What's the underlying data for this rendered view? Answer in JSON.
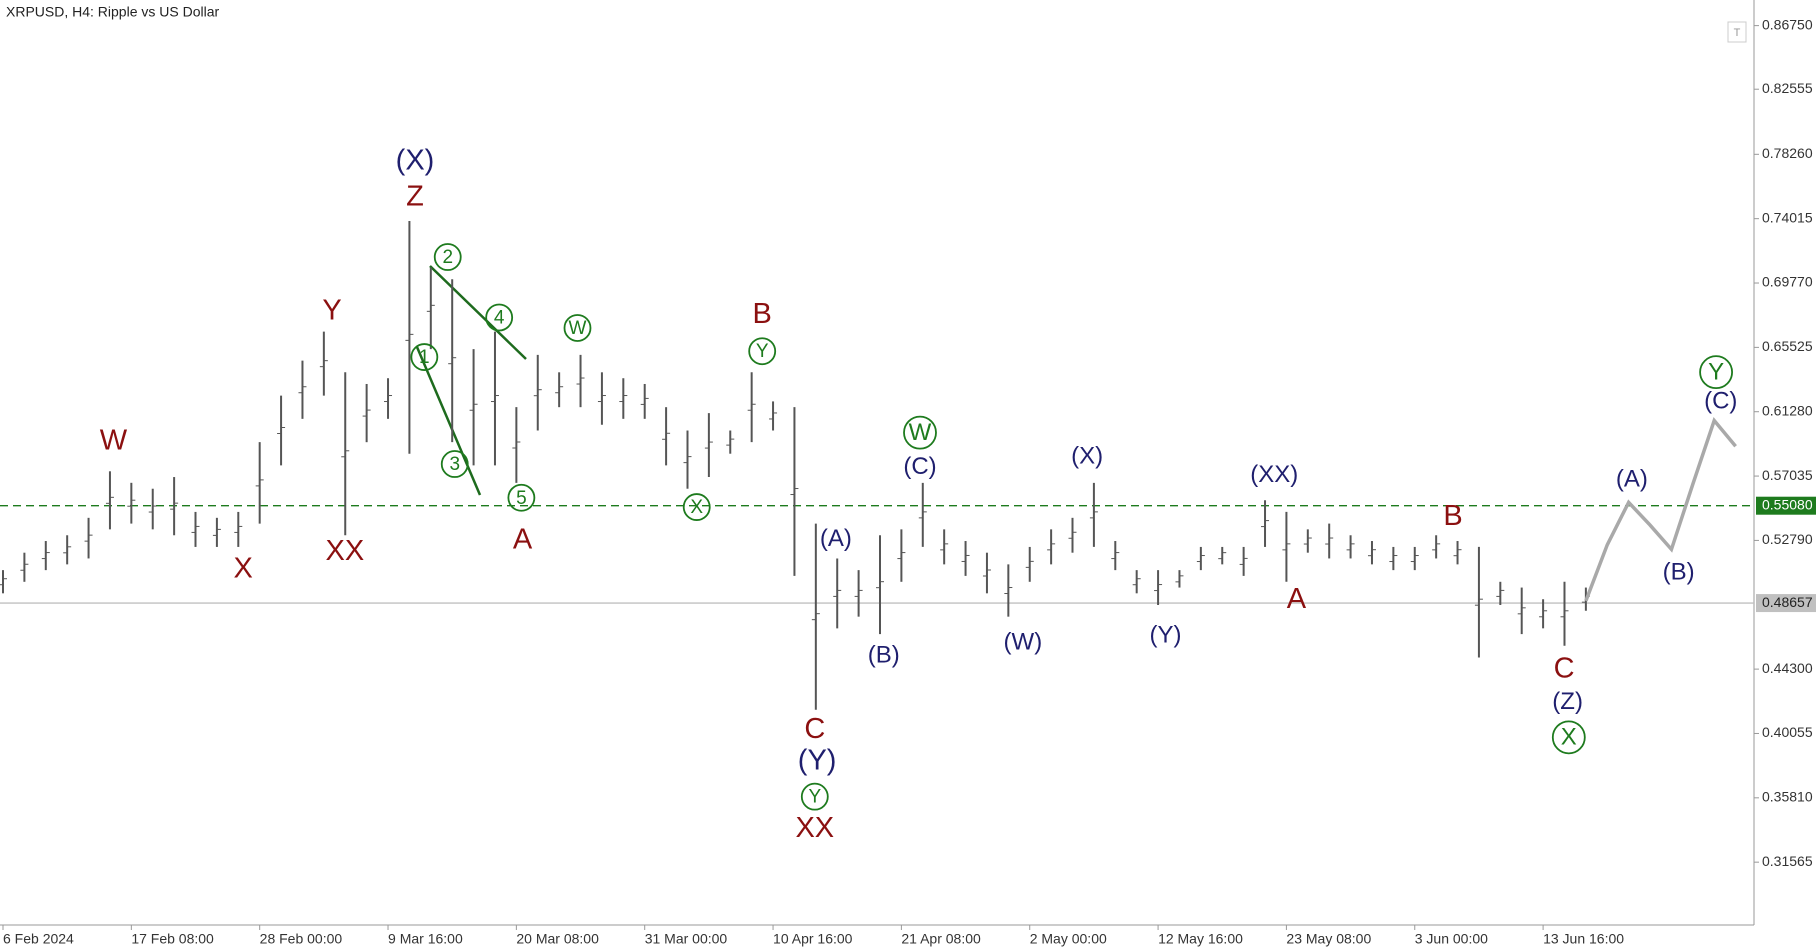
{
  "chart_data": {
    "type": "ohlc",
    "title": "XRPUSD, H4:  Ripple vs US Dollar",
    "categories": [
      "6 Feb 2024",
      null,
      null,
      null,
      null,
      null,
      "17 Feb 08:00",
      null,
      null,
      null,
      null,
      null,
      "28 Feb 00:00",
      null,
      null,
      null,
      null,
      null,
      "9 Mar 16:00",
      null,
      null,
      null,
      null,
      null,
      "20 Mar 08:00",
      null,
      null,
      null,
      null,
      null,
      "31 Mar 00:00",
      null,
      null,
      null,
      null,
      null,
      "10 Apr 16:00",
      null,
      null,
      null,
      null,
      null,
      "21 Apr 08:00",
      null,
      null,
      null,
      null,
      null,
      "2 May 00:00",
      null,
      null,
      null,
      null,
      null,
      "12 May 16:00",
      null,
      null,
      null,
      null,
      null,
      "23 May 08:00",
      null,
      null,
      null,
      null,
      null,
      "3 Jun 00:00",
      null,
      null,
      null,
      null,
      null,
      "13 Jun 16:00",
      null,
      null,
      null,
      null,
      null,
      null,
      null,
      null,
      null
    ],
    "high": [
      0.5083,
      0.5198,
      0.5275,
      0.5313,
      0.5428,
      0.5735,
      0.5659,
      0.562,
      0.5697,
      0.5467,
      0.5428,
      0.5467,
      0.5927,
      0.6234,
      0.6465,
      0.6656,
      0.6388,
      0.6311,
      0.6349,
      0.7386,
      0.7079,
      0.7002,
      0.6541,
      0.6656,
      0.6158,
      0.6503,
      0.6388,
      0.6503,
      0.6388,
      0.6349,
      0.6311,
      0.6158,
      0.6004,
      0.6119,
      0.6004,
      0.6388,
      0.6196,
      0.6158,
      0.539,
      0.516,
      0.5083,
      0.5313,
      0.5352,
      0.5659,
      0.5352,
      0.5275,
      0.5198,
      0.5121,
      0.5236,
      0.5352,
      0.5428,
      0.5659,
      0.5275,
      0.5083,
      0.5083,
      0.5083,
      0.5236,
      0.5236,
      0.5236,
      0.5544,
      0.5467,
      0.5352,
      0.539,
      0.5313,
      0.5275,
      0.5236,
      0.5236,
      0.5313,
      0.5275,
      0.5236,
      0.5006,
      0.4968,
      0.4891,
      0.5006,
      0.4968,
      null,
      null,
      null,
      null,
      null,
      null,
      null
    ],
    "low": [
      0.493,
      0.5006,
      0.5083,
      0.5121,
      0.516,
      0.5352,
      0.539,
      0.5352,
      0.5313,
      0.5236,
      0.5236,
      0.5236,
      0.539,
      0.5774,
      0.6081,
      0.6234,
      0.5313,
      0.5927,
      0.6081,
      0.5851,
      0.6541,
      0.5927,
      0.5774,
      0.5774,
      0.5659,
      0.6004,
      0.6158,
      0.6158,
      0.6042,
      0.6081,
      0.6081,
      0.5774,
      0.562,
      0.5697,
      0.5851,
      0.5927,
      0.6004,
      0.5045,
      0.4162,
      0.4699,
      0.4776,
      0.4661,
      0.5006,
      0.5236,
      0.5121,
      0.5045,
      0.493,
      0.4776,
      0.5006,
      0.5121,
      0.5198,
      0.5236,
      0.5083,
      0.493,
      0.4853,
      0.4968,
      0.5083,
      0.5121,
      0.5045,
      0.5236,
      0.5006,
      0.5198,
      0.516,
      0.516,
      0.5121,
      0.5083,
      0.5083,
      0.516,
      0.5121,
      0.4507,
      0.4853,
      0.4661,
      0.4699,
      0.4584,
      0.4815,
      null,
      null,
      null,
      null,
      null,
      null,
      null
    ],
    "color": "#555555",
    "forecast": {
      "color": "#a9a9a9",
      "values": [
        null,
        null,
        null,
        null,
        null,
        null,
        null,
        null,
        null,
        null,
        null,
        null,
        null,
        null,
        null,
        null,
        null,
        null,
        null,
        null,
        null,
        null,
        null,
        null,
        null,
        null,
        null,
        null,
        null,
        null,
        null,
        null,
        null,
        null,
        null,
        null,
        null,
        null,
        null,
        null,
        null,
        null,
        null,
        null,
        null,
        null,
        null,
        null,
        null,
        null,
        null,
        null,
        null,
        null,
        null,
        null,
        null,
        null,
        null,
        null,
        null,
        null,
        null,
        null,
        null,
        null,
        null,
        null,
        null,
        null,
        null,
        null,
        null,
        null,
        0.488,
        0.525,
        0.553,
        0.538,
        0.522,
        0.565,
        0.607,
        0.59
      ]
    },
    "ylim": [
      0.2742,
      0.8844
    ],
    "yticks": [
      {
        "value": 0.8675,
        "label": "0.86750"
      },
      0.82555,
      {
        "value": 0.7826,
        "label": "0.78260"
      },
      0.74015,
      {
        "value": 0.6977,
        "label": "0.69770"
      },
      0.65525,
      {
        "value": 0.6128,
        "label": "0.61280"
      },
      0.57035,
      {
        "value": 0.5279,
        "label": "0.52790"
      },
      {
        "value": 0.443,
        "label": "0.44300"
      },
      0.40055,
      {
        "value": 0.3581,
        "label": "0.35810"
      },
      0.31565
    ],
    "levels": [
      {
        "value": 0.5508,
        "label": "0.55080",
        "color": "#1e7b1e",
        "dashed": true
      },
      {
        "value": 0.48657,
        "label": "0.48657",
        "color": "#c0c0c0",
        "dashed": false
      }
    ],
    "annotations": [
      {
        "text": "W",
        "color": "#8b1010"
      },
      {
        "text": "X",
        "color": "#8b1010"
      },
      {
        "text": "Y",
        "color": "#8b1010"
      },
      {
        "text": "XX",
        "color": "#8b1010"
      },
      {
        "text": "(X)",
        "color": "#1f1f6e"
      },
      {
        "text": "Z",
        "color": "#8b1010"
      },
      {
        "text": "2",
        "color": "#1e7b1e",
        "circled": true
      },
      {
        "text": "1",
        "color": "#1e7b1e",
        "circled": true
      },
      {
        "text": "3",
        "color": "#1e7b1e",
        "circled": true
      },
      {
        "text": "4",
        "color": "#1e7b1e",
        "circled": true
      },
      {
        "text": "5",
        "color": "#1e7b1e",
        "circled": true
      },
      {
        "text": "A",
        "color": "#8b1010"
      },
      {
        "text": "W",
        "color": "#1e7b1e",
        "circled": true
      },
      {
        "text": "B",
        "color": "#8b1010"
      },
      {
        "text": "Y",
        "color": "#1e7b1e",
        "circled": true
      },
      {
        "text": "X",
        "color": "#1e7b1e",
        "circled": true
      },
      {
        "text": "(A)",
        "color": "#1f1f6e"
      },
      {
        "text": "(B)",
        "color": "#1f1f6e"
      },
      {
        "text": "C",
        "color": "#8b1010"
      },
      {
        "text": "(Y)",
        "color": "#1f1f6e"
      },
      {
        "text": "Y",
        "color": "#1e7b1e",
        "circled": true
      },
      {
        "text": "XX",
        "color": "#8b1010"
      },
      {
        "text": "W",
        "color": "#1e7b1e",
        "circled": true
      },
      {
        "text": "(C)",
        "color": "#1f1f6e"
      },
      {
        "text": "(W)",
        "color": "#1f1f6e"
      },
      {
        "text": "(X)",
        "color": "#1f1f6e"
      },
      {
        "text": "(Y)",
        "color": "#1f1f6e"
      },
      {
        "text": "(XX)",
        "color": "#1f1f6e"
      },
      {
        "text": "A",
        "color": "#8b1010"
      },
      {
        "text": "B",
        "color": "#8b1010"
      },
      {
        "text": "C",
        "color": "#8b1010"
      },
      {
        "text": "(Z)",
        "color": "#1f1f6e"
      },
      {
        "text": "X",
        "color": "#1e7b1e",
        "circled": true
      },
      {
        "text": "(A)",
        "color": "#1f1f6e"
      },
      {
        "text": "(B)",
        "color": "#1f1f6e"
      },
      {
        "text": "(C)",
        "color": "#1f1f6e"
      },
      {
        "text": "Y",
        "color": "#1e7b1e",
        "circled": true
      }
    ]
  }
}
